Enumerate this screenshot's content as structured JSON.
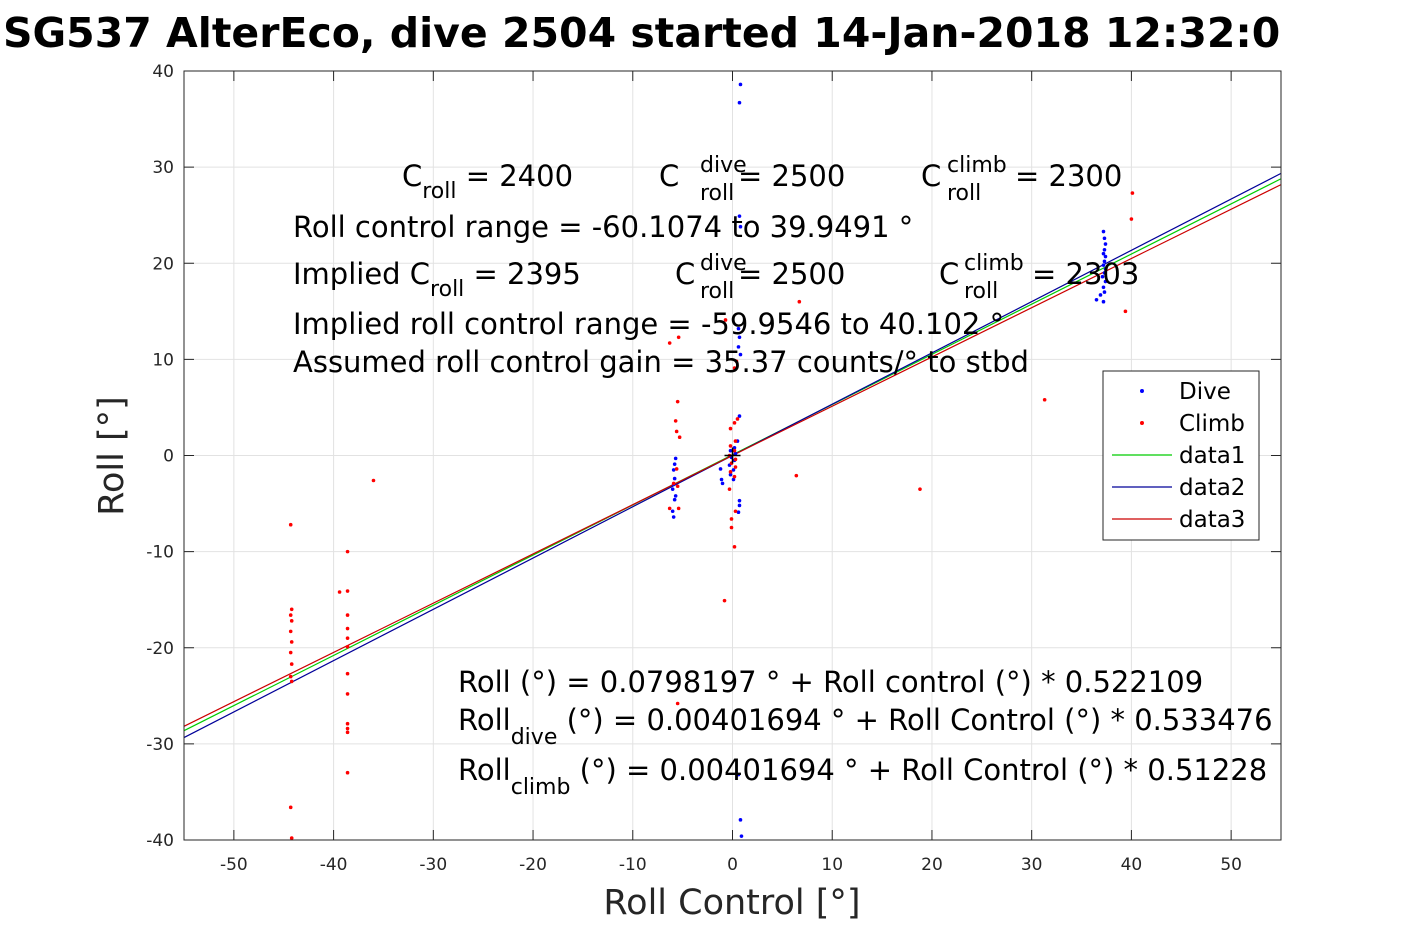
{
  "chart_data": {
    "type": "scatter",
    "title": "SG537 AlterEco, dive 2504 started 14-Jan-2018 12:32:0",
    "xlabel": "Roll Control [°]",
    "ylabel": "Roll [°]",
    "xlim": [
      -55,
      55
    ],
    "ylim": [
      -40,
      40
    ],
    "xticks": [
      -50,
      -40,
      -30,
      -20,
      -10,
      0,
      10,
      20,
      30,
      40,
      50
    ],
    "yticks": [
      -40,
      -30,
      -20,
      -10,
      0,
      10,
      20,
      30,
      40
    ],
    "xtick_labels": [
      "-50",
      "-40",
      "-30",
      "-20",
      "-10",
      "0",
      "10",
      "20",
      "30",
      "40",
      "50"
    ],
    "ytick_labels": [
      "-40",
      "-30",
      "-20",
      "-10",
      "0",
      "10",
      "20",
      "30",
      "40"
    ],
    "grid": true,
    "legend_position": "right",
    "colors": {
      "dive": "#0000ff",
      "climb": "#ff0000",
      "data1": "#00cc00",
      "data2": "#000099",
      "data3": "#cc0000",
      "grid": "#e2e2e2",
      "axes": "#262626"
    },
    "series": [
      {
        "name": "Dive",
        "kind": "points",
        "color": "#0000ff",
        "points": [
          [
            0.8,
            38.6
          ],
          [
            0.7,
            36.7
          ],
          [
            0.7,
            24.9
          ],
          [
            0.8,
            23.8
          ],
          [
            0.6,
            13.2
          ],
          [
            0.7,
            12.3
          ],
          [
            0.6,
            11.3
          ],
          [
            0.8,
            10.5
          ],
          [
            0.7,
            4.1
          ],
          [
            0.5,
            1.5
          ],
          [
            0.2,
            0.8
          ],
          [
            -0.2,
            0.5
          ],
          [
            0.3,
            0.2
          ],
          [
            -0.1,
            -0.2
          ],
          [
            0.2,
            -0.5
          ],
          [
            -0.3,
            -1.0
          ],
          [
            0.1,
            -1.5
          ],
          [
            -0.2,
            -2.0
          ],
          [
            0.1,
            -2.5
          ],
          [
            -1.2,
            -1.4
          ],
          [
            -1.1,
            -2.5
          ],
          [
            -1.0,
            -2.9
          ],
          [
            0.7,
            -4.7
          ],
          [
            0.7,
            -5.2
          ],
          [
            0.6,
            -5.9
          ],
          [
            -5.7,
            -0.3
          ],
          [
            -5.8,
            -0.9
          ],
          [
            -5.9,
            -1.5
          ],
          [
            -5.8,
            -2.4
          ],
          [
            -5.9,
            -3.0
          ],
          [
            -6.0,
            -3.5
          ],
          [
            -5.7,
            -4.2
          ],
          [
            -5.8,
            -4.6
          ],
          [
            -6.0,
            -5.8
          ],
          [
            -5.9,
            -6.4
          ],
          [
            0.6,
            -33.2
          ],
          [
            0.8,
            -37.9
          ],
          [
            0.9,
            -39.6
          ],
          [
            37.2,
            23.3
          ],
          [
            37.3,
            22.6
          ],
          [
            37.4,
            22.0
          ],
          [
            37.3,
            21.4
          ],
          [
            37.2,
            21.0
          ],
          [
            37.4,
            20.7
          ],
          [
            37.3,
            20.2
          ],
          [
            37.2,
            19.8
          ],
          [
            37.4,
            19.4
          ],
          [
            37.3,
            19.0
          ],
          [
            37.1,
            18.6
          ],
          [
            37.4,
            18.1
          ],
          [
            37.2,
            17.5
          ],
          [
            37.3,
            17.0
          ],
          [
            36.9,
            16.7
          ],
          [
            36.5,
            16.2
          ],
          [
            37.2,
            16.0
          ]
        ]
      },
      {
        "name": "Climb",
        "kind": "points",
        "color": "#ff0000",
        "points": [
          [
            -44.3,
            -7.2
          ],
          [
            -44.2,
            -16.0
          ],
          [
            -44.3,
            -16.6
          ],
          [
            -44.2,
            -17.2
          ],
          [
            -44.3,
            -18.3
          ],
          [
            -44.2,
            -19.4
          ],
          [
            -44.3,
            -20.5
          ],
          [
            -44.2,
            -21.7
          ],
          [
            -44.3,
            -23.0
          ],
          [
            -44.2,
            -23.5
          ],
          [
            -44.3,
            -36.6
          ],
          [
            -44.2,
            -39.8
          ],
          [
            -39.4,
            -14.2
          ],
          [
            -38.6,
            -10.0
          ],
          [
            -38.6,
            -14.1
          ],
          [
            -38.6,
            -16.6
          ],
          [
            -38.6,
            -18.0
          ],
          [
            -38.6,
            -19.0
          ],
          [
            -38.6,
            -19.9
          ],
          [
            -38.6,
            -22.7
          ],
          [
            -38.6,
            -24.8
          ],
          [
            -38.6,
            -27.9
          ],
          [
            -38.6,
            -28.4
          ],
          [
            -38.6,
            -28.8
          ],
          [
            -38.6,
            -33.0
          ],
          [
            -36.0,
            -2.6
          ],
          [
            -6.3,
            11.7
          ],
          [
            -5.4,
            12.3
          ],
          [
            -5.5,
            5.6
          ],
          [
            -5.7,
            3.6
          ],
          [
            -5.6,
            2.5
          ],
          [
            -5.3,
            1.9
          ],
          [
            -5.6,
            -1.4
          ],
          [
            -5.9,
            -2.9
          ],
          [
            -5.5,
            -3.2
          ],
          [
            -6.3,
            -5.5
          ],
          [
            -5.4,
            -5.5
          ],
          [
            -5.5,
            -25.8
          ],
          [
            -0.7,
            14.1
          ],
          [
            0.4,
            9.8
          ],
          [
            0.2,
            9.1
          ],
          [
            0.5,
            3.8
          ],
          [
            0.2,
            3.4
          ],
          [
            -0.2,
            2.8
          ],
          [
            0.3,
            1.5
          ],
          [
            -0.2,
            1.0
          ],
          [
            0.2,
            0.5
          ],
          [
            -0.3,
            0.0
          ],
          [
            0.3,
            -0.4
          ],
          [
            -0.1,
            -0.8
          ],
          [
            0.3,
            -1.2
          ],
          [
            -0.2,
            -1.7
          ],
          [
            0.2,
            -2.2
          ],
          [
            -0.3,
            -3.5
          ],
          [
            0.3,
            -5.8
          ],
          [
            -0.1,
            -6.6
          ],
          [
            -0.1,
            -7.5
          ],
          [
            0.2,
            -9.5
          ],
          [
            -0.8,
            -15.1
          ],
          [
            6.7,
            16.0
          ],
          [
            6.4,
            -2.1
          ],
          [
            18.8,
            -3.5
          ],
          [
            31.3,
            5.8
          ],
          [
            39.4,
            15.0
          ],
          [
            40.0,
            24.6
          ],
          [
            40.1,
            27.3
          ]
        ]
      },
      {
        "name": "data1",
        "kind": "line",
        "color": "#00cc00",
        "x": [
          -55,
          55
        ],
        "y": [
          -28.63,
          28.79
        ]
      },
      {
        "name": "data2",
        "kind": "line",
        "color": "#000099",
        "x": [
          -55,
          55
        ],
        "y": [
          -29.34,
          29.35
        ]
      },
      {
        "name": "data3",
        "kind": "line",
        "color": "#cc0000",
        "x": [
          -55,
          55
        ],
        "y": [
          -28.17,
          28.18
        ]
      }
    ],
    "legend": [
      {
        "label": "Dive",
        "type": "marker",
        "color": "#0000ff"
      },
      {
        "label": "Climb",
        "type": "marker",
        "color": "#ff0000"
      },
      {
        "label": "data1",
        "type": "line",
        "color": "#00cc00"
      },
      {
        "label": "data2",
        "type": "line",
        "color": "#000099"
      },
      {
        "label": "data3",
        "type": "line",
        "color": "#cc0000"
      }
    ],
    "annotations": {
      "c_roll": {
        "main": "C",
        "sub": "roll",
        "rest": " = 2400"
      },
      "c_roll_dive": {
        "main": "C",
        "sup": "dive",
        "sub": "roll",
        "rest": " = 2500"
      },
      "c_roll_climb": {
        "main": "C",
        "sup": "climb",
        "sub": "roll",
        "rest": " = 2300"
      },
      "range_line": "Roll control range = -60.1074 to 39.9491 °",
      "implied_c_roll": {
        "pre": "Implied C",
        "sub": "roll",
        "rest": " = 2395"
      },
      "implied_c_roll_dive": {
        "main": "C",
        "sup": "dive",
        "sub": "roll",
        "rest": " = 2500"
      },
      "implied_c_roll_climb": {
        "main": "C",
        "sup": "climb",
        "sub": "roll",
        "rest": " = 2303"
      },
      "implied_range_line": "Implied roll control range = -59.9546 to 40.102 °",
      "gain_line": "Assumed roll control gain = 35.37 counts/° to stbd",
      "fit_line": "Roll (°) = 0.0798197 ° + Roll control (°) * 0.522109",
      "fit_dive": {
        "main": "Roll",
        "sub": "dive",
        "rest": " (°) = 0.00401694 ° + Roll Control (°) * 0.533476"
      },
      "fit_climb": {
        "main": "Roll",
        "sub": "climb",
        "rest": " (°) = 0.00401694 ° + Roll Control (°) * 0.51228"
      }
    }
  }
}
